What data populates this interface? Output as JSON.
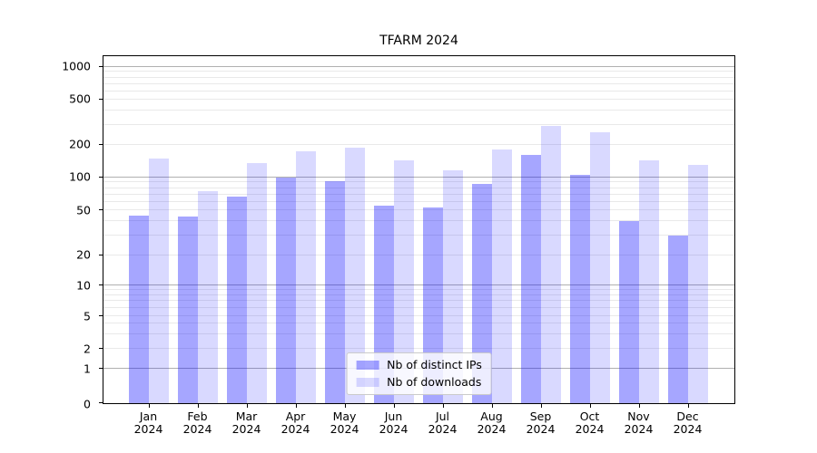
{
  "chart_data": {
    "type": "bar",
    "title": "TFARM 2024",
    "months": [
      "Jan",
      "Feb",
      "Mar",
      "Apr",
      "May",
      "Jun",
      "Jul",
      "Aug",
      "Sep",
      "Oct",
      "Nov",
      "Dec"
    ],
    "year": "2024",
    "series": [
      {
        "name": "Nb of distinct IPs",
        "color": "rgba(0,0,255,0.35)",
        "values": [
          45,
          44,
          67,
          100,
          93,
          55,
          53,
          88,
          160,
          105,
          40,
          30
        ]
      },
      {
        "name": "Nb of downloads",
        "color": "rgba(0,0,255,0.15)",
        "values": [
          150,
          75,
          135,
          175,
          190,
          145,
          117,
          180,
          295,
          260,
          145,
          130
        ]
      }
    ],
    "y_axis": {
      "scale": "symlog",
      "ticks": [
        0,
        1,
        2,
        5,
        10,
        20,
        50,
        100,
        200,
        500,
        1000
      ],
      "tick_positions_pct": [
        0,
        9.91,
        15.7,
        25.16,
        33.85,
        42.63,
        55.54,
        65.06,
        74.45,
        87.48,
        96.87
      ],
      "ylim": [
        0,
        1258
      ]
    },
    "grid": {
      "major_color": "#b0b0b0",
      "minor_color": "#e9e9e9",
      "major_values": [
        1,
        10,
        100,
        1000
      ]
    },
    "legend": {
      "position": "lower center"
    },
    "axis_color": "#000000",
    "background": "#ffffff"
  }
}
